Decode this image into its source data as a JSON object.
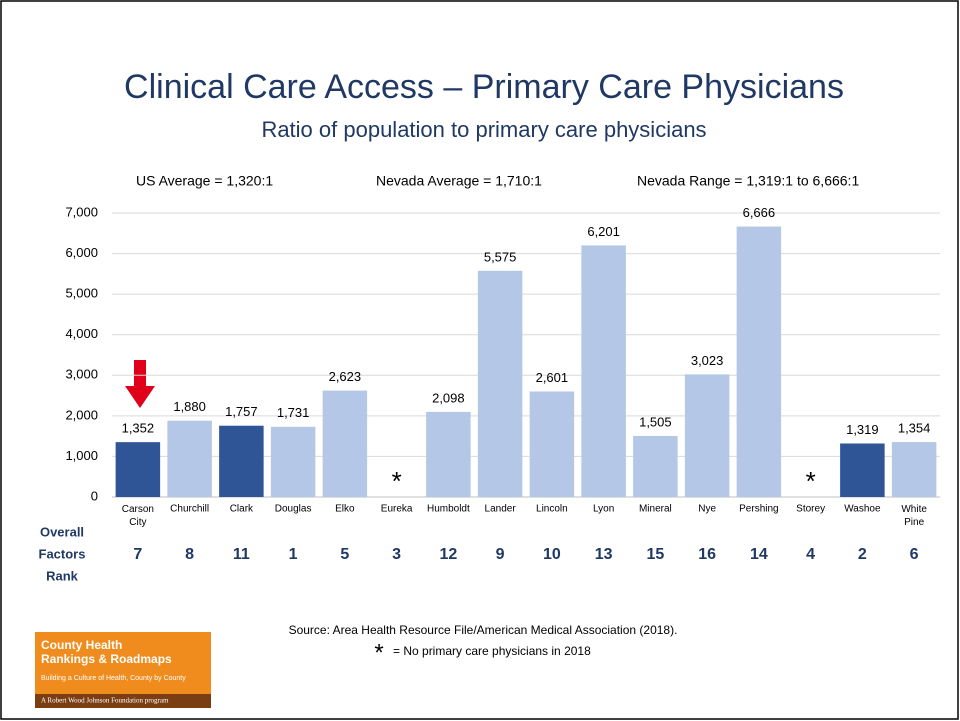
{
  "chart_data": {
    "type": "bar",
    "title": "Clinical Care Access – Primary Care Physicians",
    "subtitle": "Ratio of population to primary care physicians",
    "annotations": [
      "US Average = 1,320:1",
      "Nevada Average = 1,710:1",
      "Nevada Range = 1,319:1 to 6,666:1"
    ],
    "categories": [
      "Carson City",
      "Churchill",
      "Clark",
      "Douglas",
      "Elko",
      "Eureka",
      "Humboldt",
      "Lander",
      "Lincoln",
      "Lyon",
      "Mineral",
      "Nye",
      "Pershing",
      "Storey",
      "Washoe",
      "White Pine"
    ],
    "values": [
      1352,
      1880,
      1757,
      1731,
      2623,
      null,
      2098,
      5575,
      2601,
      6201,
      1505,
      3023,
      6666,
      null,
      1319,
      1354
    ],
    "value_labels": [
      "1,352",
      "1,880",
      "1,757",
      "1,731",
      "2,623",
      null,
      "2,098",
      "5,575",
      "2,601",
      "6,201",
      "1,505",
      "3,023",
      "6,666",
      null,
      "1,319",
      "1,354"
    ],
    "colors": [
      "#2f5597",
      "#b4c7e7",
      "#2f5597",
      "#b4c7e7",
      "#b4c7e7",
      "#b4c7e7",
      "#b4c7e7",
      "#b4c7e7",
      "#b4c7e7",
      "#b4c7e7",
      "#b4c7e7",
      "#b4c7e7",
      "#b4c7e7",
      "#b4c7e7",
      "#2f5597",
      "#b4c7e7"
    ],
    "missing_marker": "*",
    "missing_note": "= No primary care physicians in 2018",
    "ylim": [
      0,
      7000
    ],
    "yticks": [
      0,
      {
        "value": 1000,
        "label": "1,000"
      },
      {
        "value": 2000,
        "label": "2,000"
      },
      {
        "value": 3000,
        "label": "3,000"
      },
      {
        "value": 4000,
        "label": "4,000"
      },
      {
        "value": 5000,
        "label": "5,000"
      },
      {
        "value": 6000,
        "label": "6,000"
      },
      {
        "value": 7000,
        "label": "7,000"
      }
    ],
    "grid": true,
    "rank_label": [
      "Overall",
      "Factors",
      "Rank"
    ],
    "ranks": [
      7,
      8,
      11,
      1,
      5,
      3,
      12,
      9,
      10,
      13,
      15,
      16,
      14,
      4,
      2,
      6
    ],
    "source": "Source: Area Health Resource File/American Medical Association (2018).",
    "logo": [
      "County Health",
      "Rankings & Roadmaps",
      "Building a Culture of Health, County by County",
      "A Robert Wood Johnson Foundation program"
    ]
  }
}
